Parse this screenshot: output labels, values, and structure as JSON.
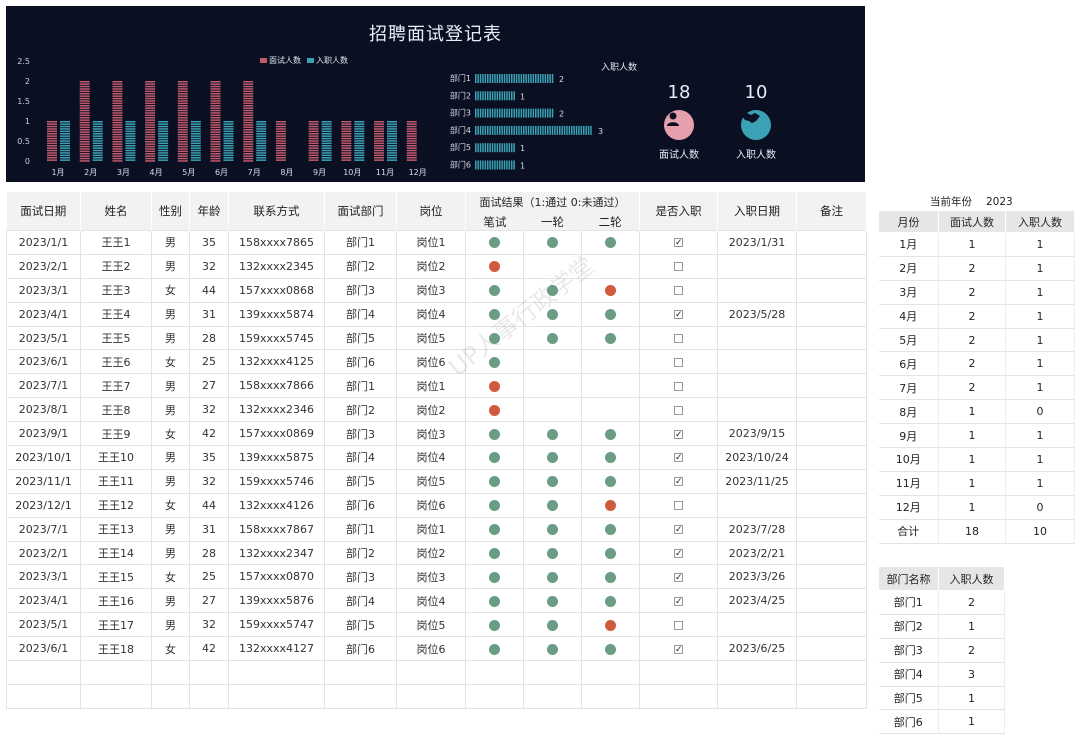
{
  "title": "招聘面试登记表",
  "colors": {
    "bg_dark": "#0a0f22",
    "interview_bar": "#c25a6e",
    "hired_bar": "#3aa2b4",
    "dept_bar": "#3aa2b4",
    "pass_dot": "#6a9d83",
    "fail_dot": "#cf5a3c"
  },
  "chart_data": [
    {
      "type": "bar",
      "categories": [
        "1月",
        "2月",
        "3月",
        "4月",
        "5月",
        "6月",
        "7月",
        "8月",
        "9月",
        "10月",
        "11月",
        "12月"
      ],
      "series": [
        {
          "name": "面试人数",
          "values": [
            1,
            2,
            2,
            2,
            2,
            2,
            2,
            1,
            1,
            1,
            1,
            1
          ]
        },
        {
          "name": "入职人数",
          "values": [
            1,
            1,
            1,
            1,
            1,
            1,
            1,
            0,
            1,
            1,
            1,
            0
          ]
        }
      ],
      "yticks": [
        "0",
        "0.5",
        "1",
        "1.5",
        "2",
        "2.5"
      ],
      "ylim": [
        0,
        2.5
      ],
      "legend": "top-center"
    },
    {
      "type": "bar",
      "orientation": "horizontal",
      "title": "入职人数",
      "categories": [
        "部门1",
        "部门2",
        "部门3",
        "部门4",
        "部门5",
        "部门6"
      ],
      "values": [
        2,
        1,
        2,
        3,
        1,
        1
      ]
    }
  ],
  "kpi": {
    "interview": {
      "value": "18",
      "label": "面试人数",
      "icon": "person-icon"
    },
    "hired": {
      "value": "10",
      "label": "入职人数",
      "icon": "handshake-icon"
    }
  },
  "table": {
    "headers": {
      "date": "面试日期",
      "name": "姓名",
      "gender": "性别",
      "age": "年龄",
      "phone": "联系方式",
      "dept": "面试部门",
      "post": "岗位",
      "result": "面试结果（1:通过 0:未通过）",
      "written": "笔试",
      "round1": "一轮",
      "round2": "二轮",
      "hired": "是否入职",
      "hire_date": "入职日期",
      "note": "备注"
    },
    "rows": [
      {
        "date": "2023/1/1",
        "name": "王王1",
        "gender": "男",
        "age": "35",
        "phone": "158xxxx7865",
        "dept": "部门1",
        "post": "岗位1",
        "w": 1,
        "r1": 1,
        "r2": 1,
        "hired": true,
        "hire_date": "2023/1/31"
      },
      {
        "date": "2023/2/1",
        "name": "王王2",
        "gender": "男",
        "age": "32",
        "phone": "132xxxx2345",
        "dept": "部门2",
        "post": "岗位2",
        "w": 0,
        "r1": null,
        "r2": null,
        "hired": false,
        "hire_date": ""
      },
      {
        "date": "2023/3/1",
        "name": "王王3",
        "gender": "女",
        "age": "44",
        "phone": "157xxxx0868",
        "dept": "部门3",
        "post": "岗位3",
        "w": 1,
        "r1": 1,
        "r2": 0,
        "hired": false,
        "hire_date": ""
      },
      {
        "date": "2023/4/1",
        "name": "王王4",
        "gender": "男",
        "age": "31",
        "phone": "139xxxx5874",
        "dept": "部门4",
        "post": "岗位4",
        "w": 1,
        "r1": 1,
        "r2": 1,
        "hired": true,
        "hire_date": "2023/5/28"
      },
      {
        "date": "2023/5/1",
        "name": "王王5",
        "gender": "男",
        "age": "28",
        "phone": "159xxxx5745",
        "dept": "部门5",
        "post": "岗位5",
        "w": 1,
        "r1": 1,
        "r2": 1,
        "hired": false,
        "hire_date": ""
      },
      {
        "date": "2023/6/1",
        "name": "王王6",
        "gender": "女",
        "age": "25",
        "phone": "132xxxx4125",
        "dept": "部门6",
        "post": "岗位6",
        "w": 1,
        "r1": null,
        "r2": null,
        "hired": false,
        "hire_date": ""
      },
      {
        "date": "2023/7/1",
        "name": "王王7",
        "gender": "男",
        "age": "27",
        "phone": "158xxxx7866",
        "dept": "部门1",
        "post": "岗位1",
        "w": 0,
        "r1": null,
        "r2": null,
        "hired": false,
        "hire_date": ""
      },
      {
        "date": "2023/8/1",
        "name": "王王8",
        "gender": "男",
        "age": "32",
        "phone": "132xxxx2346",
        "dept": "部门2",
        "post": "岗位2",
        "w": 0,
        "r1": null,
        "r2": null,
        "hired": false,
        "hire_date": ""
      },
      {
        "date": "2023/9/1",
        "name": "王王9",
        "gender": "女",
        "age": "42",
        "phone": "157xxxx0869",
        "dept": "部门3",
        "post": "岗位3",
        "w": 1,
        "r1": 1,
        "r2": 1,
        "hired": true,
        "hire_date": "2023/9/15"
      },
      {
        "date": "2023/10/1",
        "name": "王王10",
        "gender": "男",
        "age": "35",
        "phone": "139xxxx5875",
        "dept": "部门4",
        "post": "岗位4",
        "w": 1,
        "r1": 1,
        "r2": 1,
        "hired": true,
        "hire_date": "2023/10/24"
      },
      {
        "date": "2023/11/1",
        "name": "王王11",
        "gender": "男",
        "age": "32",
        "phone": "159xxxx5746",
        "dept": "部门5",
        "post": "岗位5",
        "w": 1,
        "r1": 1,
        "r2": 1,
        "hired": true,
        "hire_date": "2023/11/25"
      },
      {
        "date": "2023/12/1",
        "name": "王王12",
        "gender": "女",
        "age": "44",
        "phone": "132xxxx4126",
        "dept": "部门6",
        "post": "岗位6",
        "w": 1,
        "r1": 1,
        "r2": 0,
        "hired": false,
        "hire_date": ""
      },
      {
        "date": "2023/7/1",
        "name": "王王13",
        "gender": "男",
        "age": "31",
        "phone": "158xxxx7867",
        "dept": "部门1",
        "post": "岗位1",
        "w": 1,
        "r1": 1,
        "r2": 1,
        "hired": true,
        "hire_date": "2023/7/28"
      },
      {
        "date": "2023/2/1",
        "name": "王王14",
        "gender": "男",
        "age": "28",
        "phone": "132xxxx2347",
        "dept": "部门2",
        "post": "岗位2",
        "w": 1,
        "r1": 1,
        "r2": 1,
        "hired": true,
        "hire_date": "2023/2/21"
      },
      {
        "date": "2023/3/1",
        "name": "王王15",
        "gender": "女",
        "age": "25",
        "phone": "157xxxx0870",
        "dept": "部门3",
        "post": "岗位3",
        "w": 1,
        "r1": 1,
        "r2": 1,
        "hired": true,
        "hire_date": "2023/3/26"
      },
      {
        "date": "2023/4/1",
        "name": "王王16",
        "gender": "男",
        "age": "27",
        "phone": "139xxxx5876",
        "dept": "部门4",
        "post": "岗位4",
        "w": 1,
        "r1": 1,
        "r2": 1,
        "hired": true,
        "hire_date": "2023/4/25"
      },
      {
        "date": "2023/5/1",
        "name": "王王17",
        "gender": "男",
        "age": "32",
        "phone": "159xxxx5747",
        "dept": "部门5",
        "post": "岗位5",
        "w": 1,
        "r1": 1,
        "r2": 0,
        "hired": false,
        "hire_date": ""
      },
      {
        "date": "2023/6/1",
        "name": "王王18",
        "gender": "女",
        "age": "42",
        "phone": "132xxxx4127",
        "dept": "部门6",
        "post": "岗位6",
        "w": 1,
        "r1": 1,
        "r2": 1,
        "hired": true,
        "hire_date": "2023/6/25"
      }
    ],
    "empty_rows": 2
  },
  "year_label": "当前年份",
  "year_value": "2023",
  "month_table": {
    "headers": [
      "月份",
      "面试人数",
      "入职人数"
    ],
    "rows": [
      [
        "1月",
        "1",
        "1"
      ],
      [
        "2月",
        "2",
        "1"
      ],
      [
        "3月",
        "2",
        "1"
      ],
      [
        "4月",
        "2",
        "1"
      ],
      [
        "5月",
        "2",
        "1"
      ],
      [
        "6月",
        "2",
        "1"
      ],
      [
        "7月",
        "2",
        "1"
      ],
      [
        "8月",
        "1",
        "0"
      ],
      [
        "9月",
        "1",
        "1"
      ],
      [
        "10月",
        "1",
        "1"
      ],
      [
        "11月",
        "1",
        "1"
      ],
      [
        "12月",
        "1",
        "0"
      ]
    ],
    "total": [
      "合计",
      "18",
      "10"
    ]
  },
  "dept_table": {
    "headers": [
      "部门名称",
      "入职人数"
    ],
    "rows": [
      [
        "部门1",
        "2"
      ],
      [
        "部门2",
        "1"
      ],
      [
        "部门3",
        "2"
      ],
      [
        "部门4",
        "3"
      ],
      [
        "部门5",
        "1"
      ],
      [
        "部门6",
        "1"
      ]
    ]
  },
  "watermark": "UP人事行政学堂"
}
